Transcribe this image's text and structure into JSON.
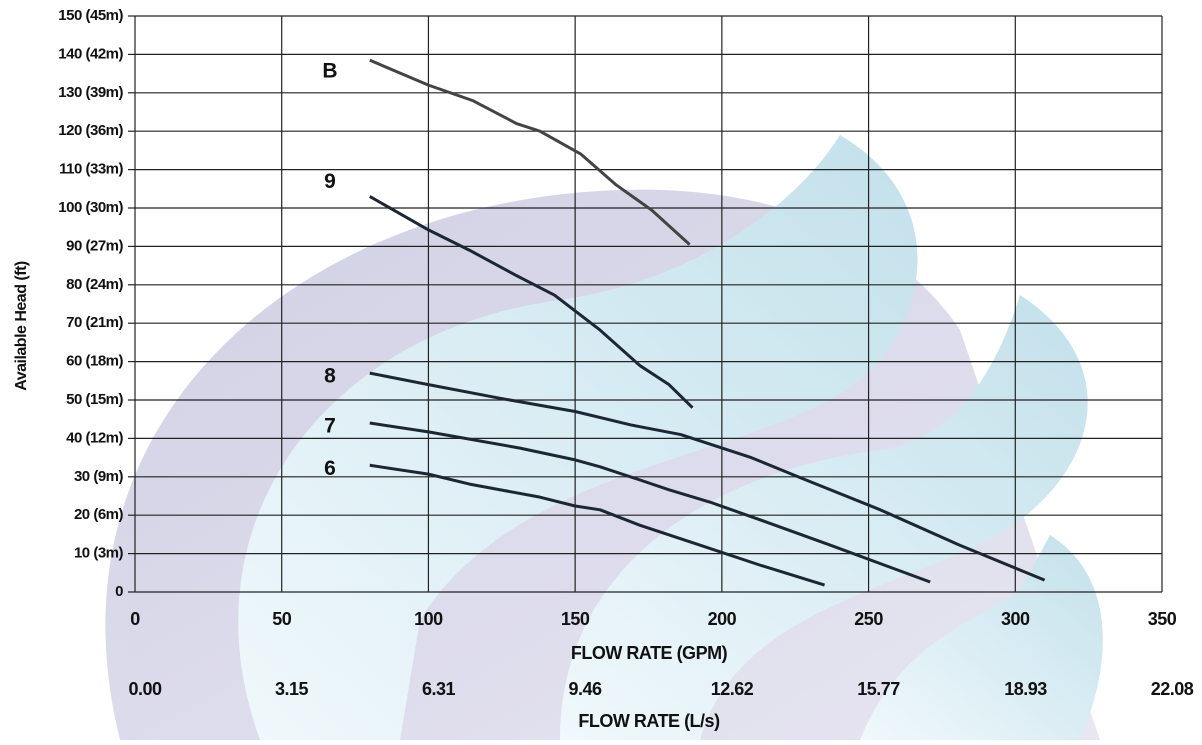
{
  "chart_data": {
    "type": "line",
    "ylabel": "Available Head  (ft)",
    "xlabel": "FLOW RATE (GPM)",
    "x2label": "FLOW RATE (L/s)",
    "xlim": [
      0,
      350
    ],
    "xticks": [
      0,
      50,
      100,
      150,
      200,
      250,
      300,
      350
    ],
    "x2lim": [
      0,
      22.08
    ],
    "x2ticks": [
      {
        "value": 0,
        "label": "0.00"
      },
      3.15,
      6.31,
      9.46,
      12.62,
      15.77,
      18.93,
      22.08
    ],
    "ylim": [
      0,
      150
    ],
    "yticks": [
      0,
      {
        "value": 10,
        "label": "10 (3m)"
      },
      {
        "value": 20,
        "label": "20 (6m)"
      },
      {
        "value": 30,
        "label": "30 (9m)"
      },
      {
        "value": 40,
        "label": "40 (12m)"
      },
      {
        "value": 50,
        "label": "50 (15m)"
      },
      {
        "value": 60,
        "label": "60 (18m)"
      },
      {
        "value": 70,
        "label": "70 (21m)"
      },
      {
        "value": 80,
        "label": "80 (24m)"
      },
      {
        "value": 90,
        "label": "90 (27m)"
      },
      {
        "value": 100,
        "label": "100 (30m)"
      },
      {
        "value": 110,
        "label": "110 (33m)"
      },
      {
        "value": 120,
        "label": "120 (36m)"
      },
      {
        "value": 130,
        "label": "130 (39m)"
      },
      {
        "value": 140,
        "label": "140 (42m)"
      },
      {
        "value": 150,
        "label": "150 (45m)"
      }
    ],
    "grid": true,
    "series": [
      {
        "name": "B",
        "color": "#444444",
        "x": [
          80,
          100,
          115,
          130,
          138,
          152,
          164,
          176,
          189
        ],
        "values": [
          138.5,
          132,
          128,
          122,
          120,
          114,
          106,
          99.5,
          90.5
        ]
      },
      {
        "name": "9",
        "color": "#1c2733",
        "x": [
          80,
          100,
          114,
          129.5,
          143,
          158.5,
          172,
          182,
          190
        ],
        "values": [
          103,
          94.3,
          89,
          82.6,
          77.3,
          68.2,
          59,
          54,
          48
        ]
      },
      {
        "name": "8",
        "color": "#1c2733",
        "x": [
          80,
          100,
          124,
          150,
          169,
          186,
          210,
          227,
          254,
          281,
          310
        ],
        "values": [
          57,
          54,
          50.5,
          47,
          43.5,
          41,
          35,
          29.7,
          21.4,
          12.2,
          3.1
        ]
      },
      {
        "name": "7",
        "color": "#1c2733",
        "x": [
          80,
          100,
          131,
          150,
          158.5,
          172,
          182,
          196,
          213,
          237,
          271
        ],
        "values": [
          44,
          41.7,
          37.5,
          34.4,
          32.6,
          29.2,
          26.6,
          23.4,
          18.8,
          12.2,
          2.6
        ]
      },
      {
        "name": "6",
        "color": "#1c2733",
        "x": [
          80,
          100,
          114,
          138,
          150,
          158.5,
          172,
          192.6,
          213,
          235
        ],
        "values": [
          33,
          30.7,
          28.1,
          24.7,
          22.4,
          21.4,
          17.4,
          12.2,
          7,
          1.8
        ]
      }
    ]
  }
}
